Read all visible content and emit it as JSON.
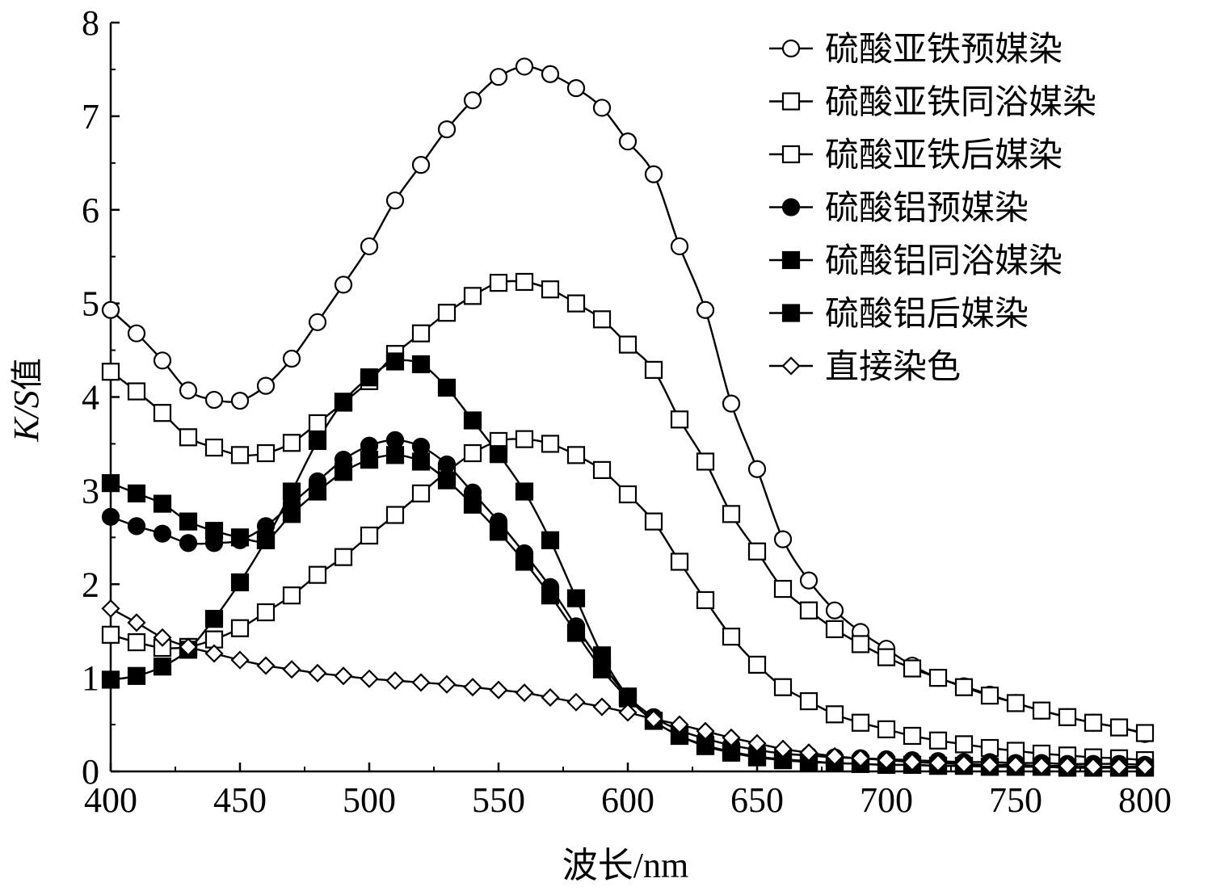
{
  "chart_data": {
    "type": "line",
    "xlabel": "波长/nm",
    "ylabel": "K/S值",
    "xlim": [
      400,
      800
    ],
    "ylim": [
      0,
      8
    ],
    "xticks": [
      "400",
      "450",
      "500",
      "550",
      "600",
      "650",
      "700",
      "750",
      "800"
    ],
    "yticks": [
      "0",
      "1",
      "2",
      "3",
      "4",
      "5",
      "6",
      "7",
      "8"
    ],
    "grid": false,
    "legend_position": "top-right",
    "x": [
      400,
      410,
      420,
      430,
      440,
      450,
      460,
      470,
      480,
      490,
      500,
      510,
      520,
      530,
      540,
      550,
      560,
      570,
      580,
      590,
      600,
      610,
      620,
      630,
      640,
      650,
      660,
      670,
      680,
      690,
      700,
      710,
      720,
      730,
      740,
      750,
      760,
      770,
      780,
      790,
      800
    ],
    "series": [
      {
        "name": "硫酸亚铁预媒染",
        "marker": "circle-open",
        "values": [
          4.93,
          4.68,
          4.39,
          4.07,
          3.97,
          3.96,
          4.12,
          4.41,
          4.8,
          5.2,
          5.61,
          6.1,
          6.48,
          6.86,
          7.17,
          7.42,
          7.53,
          7.45,
          7.3,
          7.09,
          6.73,
          6.38,
          5.61,
          4.93,
          3.93,
          3.23,
          2.48,
          2.04,
          1.72,
          1.49,
          1.31,
          1.13,
          1.0,
          0.91,
          0.82,
          0.73,
          0.65,
          0.58,
          0.52,
          0.47,
          0.4
        ]
      },
      {
        "name": "硫酸亚铁同浴媒染",
        "marker": "square-open",
        "values": [
          4.27,
          4.06,
          3.83,
          3.57,
          3.46,
          3.38,
          3.4,
          3.51,
          3.72,
          3.94,
          4.17,
          4.46,
          4.68,
          4.9,
          5.08,
          5.22,
          5.23,
          5.15,
          5.0,
          4.83,
          4.56,
          4.29,
          3.76,
          3.31,
          2.75,
          2.35,
          1.95,
          1.72,
          1.52,
          1.36,
          1.22,
          1.1,
          1.0,
          0.9,
          0.81,
          0.73,
          0.65,
          0.58,
          0.52,
          0.47,
          0.41
        ]
      },
      {
        "name": "硫酸亚铁后媒染",
        "marker": "square-open",
        "values": [
          1.46,
          1.38,
          1.32,
          1.33,
          1.41,
          1.53,
          1.7,
          1.88,
          2.1,
          2.29,
          2.52,
          2.74,
          2.97,
          3.2,
          3.4,
          3.53,
          3.55,
          3.5,
          3.38,
          3.22,
          2.96,
          2.67,
          2.24,
          1.83,
          1.44,
          1.14,
          0.9,
          0.75,
          0.61,
          0.52,
          0.45,
          0.38,
          0.33,
          0.29,
          0.25,
          0.22,
          0.19,
          0.17,
          0.15,
          0.14,
          0.12
        ]
      },
      {
        "name": "硫酸铝预媒染",
        "marker": "circle-filled",
        "values": [
          2.72,
          2.62,
          2.54,
          2.44,
          2.44,
          2.47,
          2.62,
          2.86,
          3.1,
          3.33,
          3.48,
          3.54,
          3.47,
          3.28,
          2.98,
          2.67,
          2.33,
          1.97,
          1.55,
          1.15,
          0.8,
          0.58,
          0.44,
          0.35,
          0.28,
          0.23,
          0.19,
          0.17,
          0.15,
          0.14,
          0.13,
          0.12,
          0.11,
          0.1,
          0.1,
          0.09,
          0.09,
          0.08,
          0.08,
          0.08,
          0.07
        ]
      },
      {
        "name": "硫酸铝同浴媒染",
        "marker": "square-filled",
        "values": [
          0.98,
          1.02,
          1.12,
          1.3,
          1.63,
          2.02,
          2.47,
          2.99,
          3.53,
          3.95,
          4.21,
          4.38,
          4.35,
          4.1,
          3.75,
          3.39,
          2.99,
          2.47,
          1.85,
          1.24,
          0.8,
          0.54,
          0.38,
          0.27,
          0.2,
          0.15,
          0.12,
          0.1,
          0.09,
          0.08,
          0.07,
          0.07,
          0.06,
          0.06,
          0.05,
          0.05,
          0.05,
          0.04,
          0.04,
          0.04,
          0.04
        ]
      },
      {
        "name": "硫酸铝后媒染",
        "marker": "square-filled",
        "values": [
          3.08,
          2.97,
          2.86,
          2.67,
          2.57,
          2.5,
          2.47,
          2.75,
          2.99,
          3.2,
          3.33,
          3.38,
          3.31,
          3.11,
          2.85,
          2.56,
          2.24,
          1.88,
          1.48,
          1.09,
          0.78,
          0.54,
          0.38,
          0.28,
          0.21,
          0.16,
          0.13,
          0.11,
          0.09,
          0.08,
          0.07,
          0.07,
          0.06,
          0.06,
          0.05,
          0.05,
          0.05,
          0.04,
          0.04,
          0.04,
          0.04
        ]
      },
      {
        "name": "直接染色",
        "marker": "diamond-open",
        "values": [
          1.74,
          1.59,
          1.43,
          1.33,
          1.26,
          1.19,
          1.13,
          1.09,
          1.05,
          1.02,
          0.99,
          0.97,
          0.95,
          0.93,
          0.9,
          0.87,
          0.84,
          0.79,
          0.74,
          0.69,
          0.63,
          0.56,
          0.5,
          0.43,
          0.36,
          0.3,
          0.24,
          0.2,
          0.16,
          0.14,
          0.12,
          0.1,
          0.09,
          0.08,
          0.07,
          0.07,
          0.06,
          0.06,
          0.05,
          0.05,
          0.05
        ]
      }
    ]
  }
}
